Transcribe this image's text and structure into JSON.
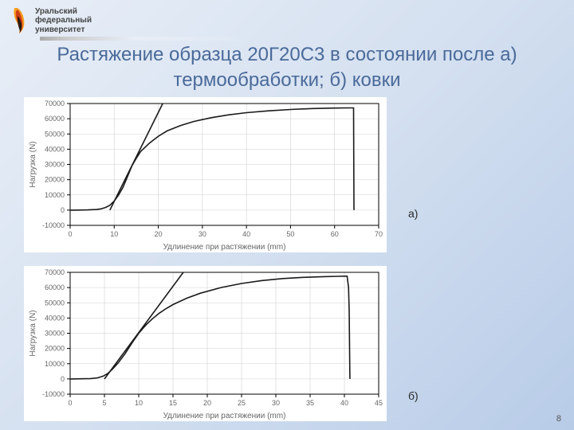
{
  "background_gradient": [
    "#e8eef7",
    "#d4e0f0",
    "#b8cce8"
  ],
  "header": {
    "uni_line1": "Уральский",
    "uni_line2": "федеральный",
    "uni_line3": "университет",
    "logo_colors": {
      "top": "#f5a020",
      "mid": "#d04018",
      "bottom": "#2a1a10"
    },
    "underline_color": "#aaaaaa"
  },
  "title": {
    "text": "Растяжение образца 20Г20С3 в состоянии после а) термообработки; б) ковки",
    "color": "#4a6a9a",
    "fontsize": 24
  },
  "labels": {
    "a": "а)",
    "b": "б)"
  },
  "page_number": "8",
  "chart_style": {
    "line_color": "#1a1a1a",
    "line_width": 1.6,
    "grid_color": "#d0d0d0",
    "axis_color": "#000000",
    "background_color": "#ffffff",
    "tick_fontsize": 9,
    "axis_label_fontsize": 10,
    "axis_label_color": "#666666",
    "tick_label_color": "#666666"
  },
  "charts": [
    {
      "id": "chart_a",
      "ylabel": "Нагрузка (N)",
      "xlabel": "Удлинение при растяжении (mm)",
      "xlim": [
        0,
        70
      ],
      "xticks": [
        0,
        10,
        20,
        30,
        40,
        50,
        60,
        70
      ],
      "ylim": [
        -10000,
        70000
      ],
      "yticks": [
        -10000,
        0,
        10000,
        20000,
        30000,
        40000,
        50000,
        60000,
        70000
      ],
      "series_main": [
        [
          0,
          0
        ],
        [
          2,
          50
        ],
        [
          4,
          150
        ],
        [
          6,
          400
        ],
        [
          7,
          800
        ],
        [
          8,
          1700
        ],
        [
          9,
          3200
        ],
        [
          10,
          6000
        ],
        [
          11,
          10000
        ],
        [
          12,
          15000
        ],
        [
          13,
          22000
        ],
        [
          14,
          29000
        ],
        [
          15,
          34000
        ],
        [
          16,
          38500
        ],
        [
          18,
          44000
        ],
        [
          20,
          48500
        ],
        [
          22,
          52000
        ],
        [
          25,
          55500
        ],
        [
          28,
          58200
        ],
        [
          32,
          60700
        ],
        [
          36,
          62600
        ],
        [
          40,
          64000
        ],
        [
          45,
          65200
        ],
        [
          50,
          66100
        ],
        [
          55,
          66700
        ],
        [
          60,
          67000
        ],
        [
          63,
          67100
        ],
        [
          64,
          67100
        ],
        [
          64.3,
          67100
        ],
        [
          64.4,
          0
        ]
      ],
      "series_tangent": [
        [
          9,
          0
        ],
        [
          21,
          70000
        ]
      ]
    },
    {
      "id": "chart_b",
      "ylabel": "Нагрузка (N)",
      "xlabel": "Удлинение при растяжении (mm)",
      "xlim": [
        0,
        45
      ],
      "xticks": [
        0,
        5,
        10,
        15,
        20,
        25,
        30,
        35,
        40,
        45
      ],
      "ylim": [
        -10000,
        70000
      ],
      "yticks": [
        -10000,
        0,
        10000,
        20000,
        30000,
        40000,
        50000,
        60000,
        70000
      ],
      "series_main": [
        [
          0,
          0
        ],
        [
          1.5,
          80
        ],
        [
          3,
          250
        ],
        [
          4,
          700
        ],
        [
          4.8,
          1800
        ],
        [
          5.5,
          3600
        ],
        [
          6.2,
          6600
        ],
        [
          7,
          10500
        ],
        [
          8,
          16500
        ],
        [
          9,
          23500
        ],
        [
          10,
          30000
        ],
        [
          11,
          35200
        ],
        [
          12,
          39500
        ],
        [
          13,
          43200
        ],
        [
          14,
          46200
        ],
        [
          15,
          48800
        ],
        [
          17,
          53000
        ],
        [
          19,
          56300
        ],
        [
          22,
          60000
        ],
        [
          25,
          62700
        ],
        [
          28,
          64600
        ],
        [
          31,
          65900
        ],
        [
          34,
          66700
        ],
        [
          37,
          67200
        ],
        [
          39,
          67400
        ],
        [
          40,
          67500
        ],
        [
          40.4,
          67500
        ],
        [
          40.6,
          60000
        ],
        [
          40.7,
          45000
        ],
        [
          40.8,
          0
        ]
      ],
      "series_tangent": [
        [
          5,
          0
        ],
        [
          16.5,
          70000
        ]
      ]
    }
  ]
}
